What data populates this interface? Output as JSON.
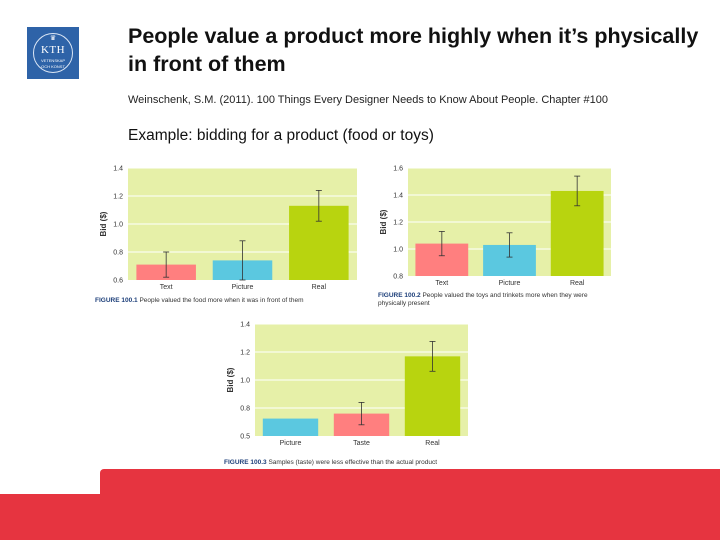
{
  "logo": {
    "text": "KTH",
    "sub": "VETENSKAP",
    "sub2": "OCH KONST",
    "crown": "♛"
  },
  "title": "People value a product more highly when it’s physically in front of them",
  "citation": "Weinschenk, S.M. (2011). 100 Things Every Designer Needs to Know About People. Chapter #100",
  "example": "Example: bidding for a product (food or toys)",
  "colors": {
    "plot_bg": "#e6f0a8",
    "accent": "#e63440",
    "text": "#ff7f7f",
    "picture": "#5bc8e0",
    "real": "#b8d40f",
    "taste": "#ff7f7f"
  },
  "chart_data": [
    {
      "type": "bar",
      "ylabel": "Bid ($)",
      "ylim": [
        0.6,
        1.4
      ],
      "yticks": [
        "0.6",
        "0.8",
        "1.0",
        "1.2",
        "1.4"
      ],
      "categories": [
        "Text",
        "Picture",
        "Real"
      ],
      "values": [
        0.71,
        0.74,
        1.13
      ],
      "errors": [
        0.09,
        0.14,
        0.11
      ],
      "bar_colors": [
        "#ff7f7f",
        "#5bc8e0",
        "#b8d40f"
      ],
      "caption_label": "FIGURE 100.1",
      "caption": "People valued the food more when it was in front of them"
    },
    {
      "type": "bar",
      "ylabel": "Bid ($)",
      "ylim": [
        0.8,
        1.6
      ],
      "yticks": [
        "0.8",
        "1.0",
        "1.2",
        "1.4",
        "1.6"
      ],
      "categories": [
        "Text",
        "Picture",
        "Real"
      ],
      "values": [
        1.04,
        1.03,
        1.43
      ],
      "errors": [
        0.09,
        0.09,
        0.11
      ],
      "bar_colors": [
        "#ff7f7f",
        "#5bc8e0",
        "#b8d40f"
      ],
      "caption_label": "FIGURE 100.2",
      "caption": "People valued the toys and trinkets more when they were physically present"
    },
    {
      "type": "bar",
      "ylabel": "Bid ($)",
      "ylim": [
        0.5,
        1.4
      ],
      "yticks": [
        "0.5",
        "0.8",
        "1.0",
        "1.2",
        "1.4"
      ],
      "categories": [
        "Picture",
        "Taste",
        "Real"
      ],
      "values": [
        0.64,
        0.68,
        1.14
      ],
      "errors": [
        0.0,
        0.09,
        0.12
      ],
      "bar_colors": [
        "#5bc8e0",
        "#ff7f7f",
        "#b8d40f"
      ],
      "caption_label": "FIGURE 100.3",
      "caption": "Samples (taste) were less effective than the actual product"
    }
  ]
}
